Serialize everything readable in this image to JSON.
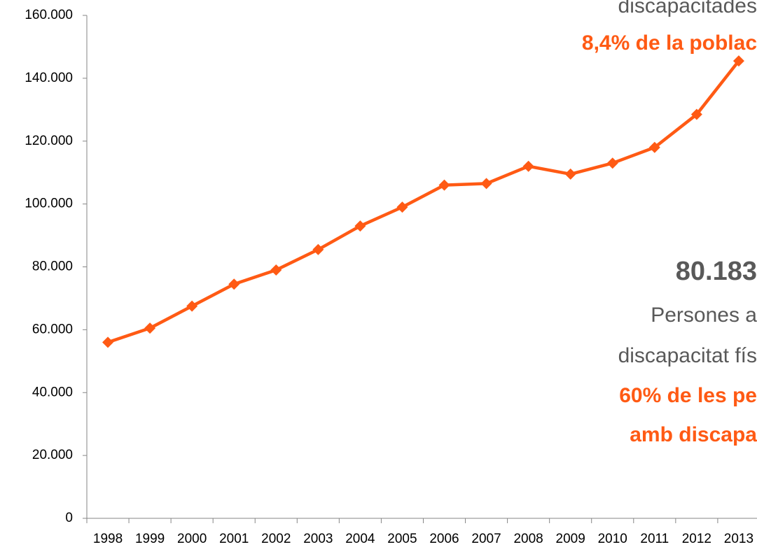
{
  "chart_data": {
    "type": "line",
    "categories": [
      "1998",
      "1999",
      "2000",
      "2001",
      "2002",
      "2003",
      "2004",
      "2005",
      "2006",
      "2007",
      "2008",
      "2009",
      "2010",
      "2011",
      "2012",
      "2013"
    ],
    "series": [
      {
        "color": "#ff5a14",
        "values": [
          56000,
          60500,
          67500,
          74500,
          79000,
          85500,
          93000,
          99000,
          106000,
          106500,
          112000,
          109500,
          113000,
          118000,
          128500,
          145500
        ]
      }
    ],
    "ylim": [
      0,
      160000
    ],
    "yticks": [
      0,
      {
        "value": 20000,
        "label": "20.000"
      },
      {
        "value": 40000,
        "label": "40.000"
      },
      {
        "value": 60000,
        "label": "60.000"
      },
      {
        "value": 80000,
        "label": "80.000"
      },
      {
        "value": 100000,
        "label": "100.000"
      },
      {
        "value": 120000,
        "label": "120.000"
      },
      {
        "value": 140000,
        "label": "140.000"
      },
      {
        "value": 160000,
        "label": "160.000"
      }
    ],
    "annotations": [
      "discapacitades",
      "8,4% de la poblac",
      "80.183",
      "Persones a",
      "discapacitat fís",
      "60% de les pe",
      "amb discapa"
    ]
  }
}
